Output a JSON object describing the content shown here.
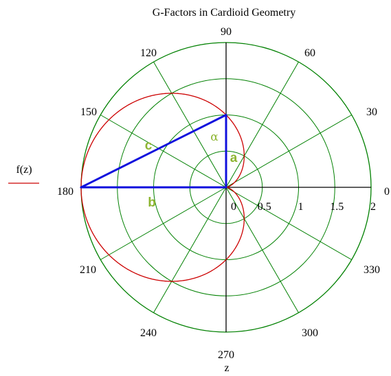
{
  "chart_data": {
    "type": "polar",
    "title": "G-Factors in Cardioid Geometry",
    "angle_label": "z",
    "angle_ticks": [
      "0",
      "30",
      "60",
      "90",
      "120",
      "150",
      "180",
      "210",
      "240",
      "270",
      "300",
      "330"
    ],
    "radial_ticks": [
      "0",
      "0.5",
      "1",
      "1.5",
      "2"
    ],
    "rlim": [
      0,
      2
    ],
    "grid": true,
    "legend": {
      "placement": "left",
      "entries": [
        {
          "name": "f(z)",
          "color": "#cc0000"
        }
      ]
    },
    "series": [
      {
        "name": "f(z)",
        "color": "#cc0000",
        "formula": "r = 1 - cos(z)",
        "z_range_deg": [
          0,
          360
        ]
      }
    ],
    "annotations": {
      "segments": [
        {
          "label": "a",
          "from": {
            "r": 0,
            "theta": 0
          },
          "to": {
            "r": 1,
            "theta": 90
          }
        },
        {
          "label": "b",
          "from": {
            "r": 0,
            "theta": 0
          },
          "to": {
            "r": 2,
            "theta": 180
          }
        },
        {
          "label": "c",
          "from": {
            "r": 1,
            "theta": 90
          },
          "to": {
            "r": 2,
            "theta": 180
          }
        }
      ],
      "angle_symbol": "α",
      "segment_color": "#1010dd",
      "label_color": "#8db531"
    }
  },
  "colors": {
    "grid": "#008000",
    "curve": "#cc0000",
    "segments": "#1010dd",
    "labels": "#8db531"
  }
}
